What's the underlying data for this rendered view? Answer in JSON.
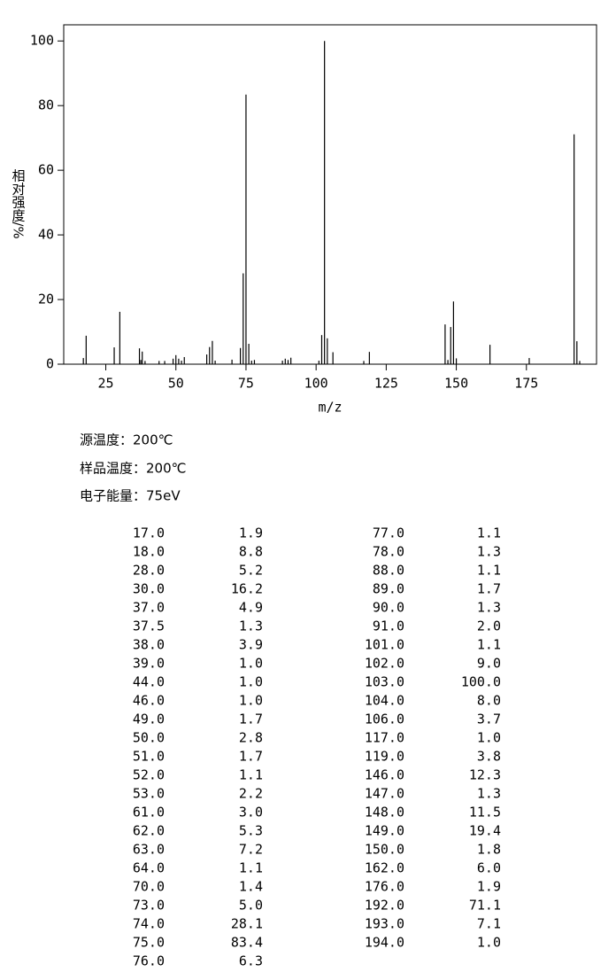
{
  "chart_data": {
    "type": "bar",
    "x_label": "m/z",
    "y_label": "相对强度/%",
    "xlim": [
      10,
      200
    ],
    "ylim": [
      0,
      105
    ],
    "xticks": [
      25,
      50,
      75,
      100,
      125,
      150,
      175
    ],
    "yticks": [
      0,
      20,
      40,
      60,
      80,
      100
    ],
    "color": "#000000",
    "x": [
      17,
      18,
      28,
      30,
      37,
      37.5,
      38,
      39,
      44,
      46,
      49,
      50,
      51,
      52,
      53,
      61,
      62,
      63,
      64,
      70,
      73,
      74,
      75,
      76,
      77,
      78,
      88,
      89,
      90,
      91,
      101,
      102,
      103,
      104,
      106,
      117,
      119,
      146,
      147,
      148,
      149,
      150,
      162,
      176,
      192,
      193,
      194
    ],
    "x_labels": [
      "17.0",
      "18.0",
      "28.0",
      "30.0",
      "37.0",
      "37.5",
      "38.0",
      "39.0",
      "44.0",
      "46.0",
      "49.0",
      "50.0",
      "51.0",
      "52.0",
      "53.0",
      "61.0",
      "62.0",
      "63.0",
      "64.0",
      "70.0",
      "73.0",
      "74.0",
      "75.0",
      "76.0",
      "77.0",
      "78.0",
      "88.0",
      "89.0",
      "90.0",
      "91.0",
      "101.0",
      "102.0",
      "103.0",
      "104.0",
      "106.0",
      "117.0",
      "119.0",
      "146.0",
      "147.0",
      "148.0",
      "149.0",
      "150.0",
      "162.0",
      "176.0",
      "192.0",
      "193.0",
      "194.0"
    ],
    "values": [
      1.9,
      8.8,
      5.2,
      16.2,
      4.9,
      1.3,
      3.9,
      1.0,
      1.0,
      1.0,
      1.7,
      2.8,
      1.7,
      1.1,
      2.2,
      3.0,
      5.3,
      7.2,
      1.1,
      1.4,
      5.0,
      28.1,
      83.4,
      6.3,
      1.1,
      1.3,
      1.1,
      1.7,
      1.3,
      2.0,
      1.1,
      9.0,
      100,
      8.0,
      3.7,
      1.0,
      3.8,
      12.3,
      1.3,
      11.5,
      19.4,
      1.8,
      6.0,
      1.9,
      71.1,
      7.1,
      1.0
    ],
    "value_labels": [
      "1.9",
      "8.8",
      "5.2",
      "16.2",
      "4.9",
      "1.3",
      "3.9",
      "1.0",
      "1.0",
      "1.0",
      "1.7",
      "2.8",
      "1.7",
      "1.1",
      "2.2",
      "3.0",
      "5.3",
      "7.2",
      "1.1",
      "1.4",
      "5.0",
      "28.1",
      "83.4",
      "6.3",
      "1.1",
      "1.3",
      "1.1",
      "1.7",
      "1.3",
      "2.0",
      "1.1",
      "9.0",
      "100.0",
      "8.0",
      "3.7",
      "1.0",
      "3.8",
      "12.3",
      "1.3",
      "11.5",
      "19.4",
      "1.8",
      "6.0",
      "1.9",
      "71.1",
      "7.1",
      "1.0"
    ]
  },
  "conditions": [
    "源温度：200℃",
    "样品温度：200℃",
    "电子能量：75eV"
  ]
}
